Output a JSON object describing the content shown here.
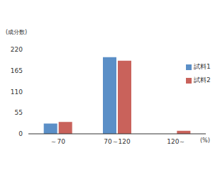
{
  "chart_data": {
    "type": "bar",
    "y_label": "(成分数)",
    "x_label": "(%)",
    "categories": [
      "～70",
      "70～120",
      "120～"
    ],
    "series": [
      {
        "name": "試料1",
        "color": "#5b8fc7",
        "values": [
          27,
          200,
          0
        ]
      },
      {
        "name": "試料2",
        "color": "#c9625b",
        "values": [
          31,
          191,
          8
        ]
      }
    ],
    "ylim": [
      0,
      220
    ],
    "yticks": [
      0,
      55,
      110,
      165,
      220
    ],
    "grid": false,
    "legend": "right"
  }
}
